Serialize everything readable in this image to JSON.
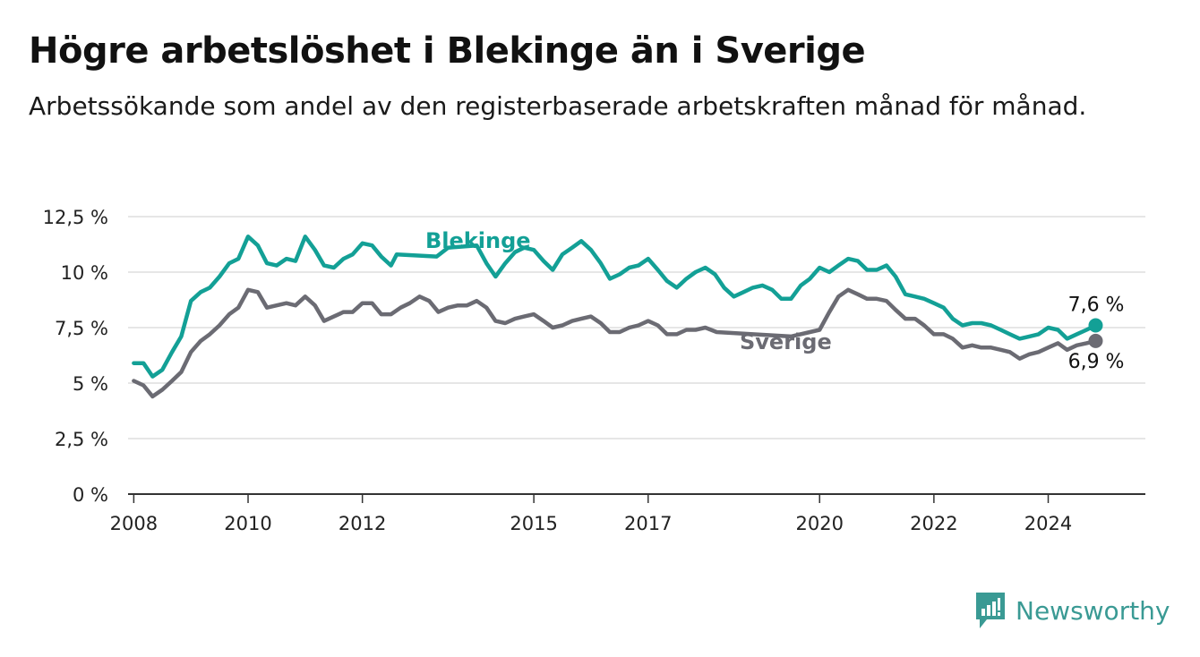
{
  "title": "Högre arbetslöshet i Blekinge än i Sverige",
  "subtitle": "Arbetssökande som andel av den registerbaserade arbetskraften månad för månad.",
  "brand": {
    "name": "Newsworthy",
    "icon": "newsworthy-logo-icon",
    "color": "#3a9a94"
  },
  "chart_data": {
    "type": "line",
    "title": "Högre arbetslöshet i Blekinge än i Sverige",
    "subtitle": "Arbetssökande som andel av den registerbaserade arbetskraften månad för månad.",
    "xlabel": "",
    "ylabel": "",
    "xlim": [
      2007.9,
      2025.7
    ],
    "ylim": [
      0,
      12.5
    ],
    "y_ticks": [
      0,
      2.5,
      5,
      7.5,
      10,
      12.5
    ],
    "y_tick_labels": [
      "0 %",
      "2,5 %",
      "5 %",
      "7,5 %",
      "10 %",
      "12,5 %"
    ],
    "x_ticks": [
      2008,
      2010,
      2012,
      2015,
      2017,
      2020,
      2022,
      2024
    ],
    "x_tick_labels": [
      "2008",
      "2010",
      "2012",
      "2015",
      "2017",
      "2020",
      "2022",
      "2024"
    ],
    "grid": "horizontal",
    "legend": "direct labels on lines",
    "series": [
      {
        "name": "Blekinge",
        "color": "#13a096",
        "end_label": "7,6 %",
        "points": [
          [
            2008.0,
            5.9
          ],
          [
            2008.17,
            5.9
          ],
          [
            2008.33,
            5.3
          ],
          [
            2008.5,
            5.6
          ],
          [
            2008.67,
            6.4
          ],
          [
            2008.83,
            7.1
          ],
          [
            2009.0,
            8.7
          ],
          [
            2009.17,
            9.1
          ],
          [
            2009.33,
            9.3
          ],
          [
            2009.5,
            9.8
          ],
          [
            2009.67,
            10.4
          ],
          [
            2009.83,
            10.6
          ],
          [
            2010.0,
            11.6
          ],
          [
            2010.17,
            11.2
          ],
          [
            2010.33,
            10.4
          ],
          [
            2010.5,
            10.3
          ],
          [
            2010.67,
            10.6
          ],
          [
            2010.83,
            10.5
          ],
          [
            2011.0,
            11.6
          ],
          [
            2011.17,
            11.0
          ],
          [
            2011.33,
            10.3
          ],
          [
            2011.5,
            10.2
          ],
          [
            2011.67,
            10.6
          ],
          [
            2011.83,
            10.8
          ],
          [
            2012.0,
            11.3
          ],
          [
            2012.17,
            11.2
          ],
          [
            2012.33,
            10.7
          ],
          [
            2012.5,
            10.3
          ],
          [
            2012.6,
            10.8
          ],
          [
            2013.3,
            10.7
          ],
          [
            2013.5,
            11.1
          ],
          [
            2014.0,
            11.2
          ],
          [
            2014.17,
            10.4
          ],
          [
            2014.33,
            9.8
          ],
          [
            2014.5,
            10.4
          ],
          [
            2014.67,
            10.9
          ],
          [
            2014.83,
            11.1
          ],
          [
            2015.0,
            11.0
          ],
          [
            2015.17,
            10.5
          ],
          [
            2015.33,
            10.1
          ],
          [
            2015.5,
            10.8
          ],
          [
            2015.67,
            11.1
          ],
          [
            2015.83,
            11.4
          ],
          [
            2016.0,
            11.0
          ],
          [
            2016.17,
            10.4
          ],
          [
            2016.33,
            9.7
          ],
          [
            2016.5,
            9.9
          ],
          [
            2016.67,
            10.2
          ],
          [
            2016.83,
            10.3
          ],
          [
            2017.0,
            10.6
          ],
          [
            2017.17,
            10.1
          ],
          [
            2017.33,
            9.6
          ],
          [
            2017.5,
            9.3
          ],
          [
            2017.67,
            9.7
          ],
          [
            2017.83,
            10.0
          ],
          [
            2018.0,
            10.2
          ],
          [
            2018.17,
            9.9
          ],
          [
            2018.33,
            9.3
          ],
          [
            2018.5,
            8.9
          ],
          [
            2018.67,
            9.1
          ],
          [
            2018.83,
            9.3
          ],
          [
            2019.0,
            9.4
          ],
          [
            2019.17,
            9.2
          ],
          [
            2019.33,
            8.8
          ],
          [
            2019.5,
            8.8
          ],
          [
            2019.67,
            9.4
          ],
          [
            2019.83,
            9.7
          ],
          [
            2020.0,
            10.2
          ],
          [
            2020.17,
            10.0
          ],
          [
            2020.33,
            10.3
          ],
          [
            2020.5,
            10.6
          ],
          [
            2020.67,
            10.5
          ],
          [
            2020.83,
            10.1
          ],
          [
            2021.0,
            10.1
          ],
          [
            2021.17,
            10.3
          ],
          [
            2021.33,
            9.8
          ],
          [
            2021.5,
            9.0
          ],
          [
            2021.67,
            8.9
          ],
          [
            2021.83,
            8.8
          ],
          [
            2022.0,
            8.6
          ],
          [
            2022.17,
            8.4
          ],
          [
            2022.33,
            7.9
          ],
          [
            2022.5,
            7.6
          ],
          [
            2022.67,
            7.7
          ],
          [
            2022.83,
            7.7
          ],
          [
            2023.0,
            7.6
          ],
          [
            2023.17,
            7.4
          ],
          [
            2023.33,
            7.2
          ],
          [
            2023.5,
            7.0
          ],
          [
            2023.67,
            7.1
          ],
          [
            2023.83,
            7.2
          ],
          [
            2024.0,
            7.5
          ],
          [
            2024.17,
            7.4
          ],
          [
            2024.33,
            7.0
          ],
          [
            2024.5,
            7.2
          ],
          [
            2024.67,
            7.4
          ],
          [
            2024.83,
            7.6
          ]
        ]
      },
      {
        "name": "Sverige",
        "color": "#6b6b73",
        "end_label": "6,9 %",
        "points": [
          [
            2008.0,
            5.1
          ],
          [
            2008.17,
            4.9
          ],
          [
            2008.33,
            4.4
          ],
          [
            2008.5,
            4.7
          ],
          [
            2008.67,
            5.1
          ],
          [
            2008.83,
            5.5
          ],
          [
            2009.0,
            6.4
          ],
          [
            2009.17,
            6.9
          ],
          [
            2009.33,
            7.2
          ],
          [
            2009.5,
            7.6
          ],
          [
            2009.67,
            8.1
          ],
          [
            2009.83,
            8.4
          ],
          [
            2010.0,
            9.2
          ],
          [
            2010.17,
            9.1
          ],
          [
            2010.33,
            8.4
          ],
          [
            2010.5,
            8.5
          ],
          [
            2010.67,
            8.6
          ],
          [
            2010.83,
            8.5
          ],
          [
            2011.0,
            8.9
          ],
          [
            2011.17,
            8.5
          ],
          [
            2011.33,
            7.8
          ],
          [
            2011.5,
            8.0
          ],
          [
            2011.67,
            8.2
          ],
          [
            2011.83,
            8.2
          ],
          [
            2012.0,
            8.6
          ],
          [
            2012.17,
            8.6
          ],
          [
            2012.33,
            8.1
          ],
          [
            2012.5,
            8.1
          ],
          [
            2012.67,
            8.4
          ],
          [
            2012.83,
            8.6
          ],
          [
            2013.0,
            8.9
          ],
          [
            2013.17,
            8.7
          ],
          [
            2013.33,
            8.2
          ],
          [
            2013.5,
            8.4
          ],
          [
            2013.67,
            8.5
          ],
          [
            2013.83,
            8.5
          ],
          [
            2014.0,
            8.7
          ],
          [
            2014.17,
            8.4
          ],
          [
            2014.33,
            7.8
          ],
          [
            2014.5,
            7.7
          ],
          [
            2014.67,
            7.9
          ],
          [
            2014.83,
            8.0
          ],
          [
            2015.0,
            8.1
          ],
          [
            2015.17,
            7.8
          ],
          [
            2015.33,
            7.5
          ],
          [
            2015.5,
            7.6
          ],
          [
            2015.67,
            7.8
          ],
          [
            2015.83,
            7.9
          ],
          [
            2016.0,
            8.0
          ],
          [
            2016.17,
            7.7
          ],
          [
            2016.33,
            7.3
          ],
          [
            2016.5,
            7.3
          ],
          [
            2016.67,
            7.5
          ],
          [
            2016.83,
            7.6
          ],
          [
            2017.0,
            7.8
          ],
          [
            2017.17,
            7.6
          ],
          [
            2017.33,
            7.2
          ],
          [
            2017.5,
            7.2
          ],
          [
            2017.67,
            7.4
          ],
          [
            2017.83,
            7.4
          ],
          [
            2018.0,
            7.5
          ],
          [
            2018.2,
            7.3
          ],
          [
            2019.5,
            7.1
          ],
          [
            2019.83,
            7.3
          ],
          [
            2020.0,
            7.4
          ],
          [
            2020.17,
            8.2
          ],
          [
            2020.33,
            8.9
          ],
          [
            2020.5,
            9.2
          ],
          [
            2020.67,
            9.0
          ],
          [
            2020.83,
            8.8
          ],
          [
            2021.0,
            8.8
          ],
          [
            2021.17,
            8.7
          ],
          [
            2021.33,
            8.3
          ],
          [
            2021.5,
            7.9
          ],
          [
            2021.67,
            7.9
          ],
          [
            2021.83,
            7.6
          ],
          [
            2022.0,
            7.2
          ],
          [
            2022.17,
            7.2
          ],
          [
            2022.33,
            7.0
          ],
          [
            2022.5,
            6.6
          ],
          [
            2022.67,
            6.7
          ],
          [
            2022.83,
            6.6
          ],
          [
            2023.0,
            6.6
          ],
          [
            2023.17,
            6.5
          ],
          [
            2023.33,
            6.4
          ],
          [
            2023.5,
            6.1
          ],
          [
            2023.67,
            6.3
          ],
          [
            2023.83,
            6.4
          ],
          [
            2024.0,
            6.6
          ],
          [
            2024.17,
            6.8
          ],
          [
            2024.33,
            6.5
          ],
          [
            2024.5,
            6.7
          ],
          [
            2024.67,
            6.8
          ],
          [
            2024.83,
            6.9
          ]
        ]
      }
    ]
  }
}
